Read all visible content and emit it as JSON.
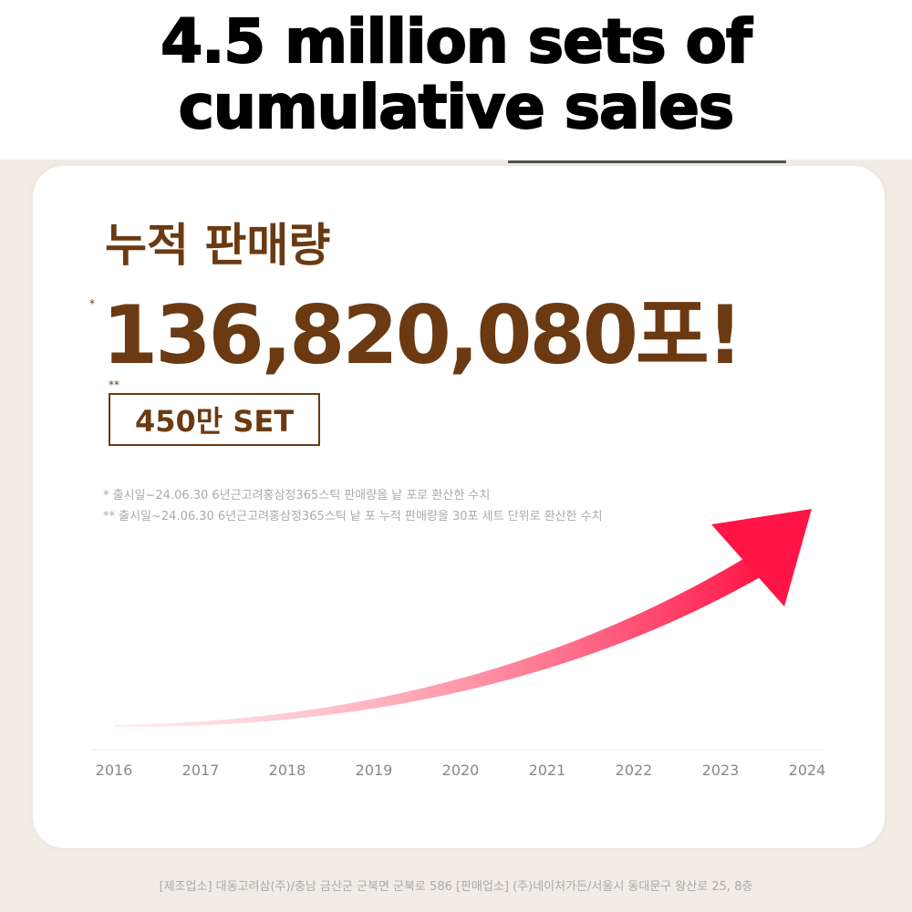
{
  "headline": [
    "4.5 million sets of",
    "cumulative sales"
  ],
  "card": {
    "label": "누적 판매량",
    "count": "136,820,080포!",
    "star1": "*",
    "star2": "**",
    "sets": "450만 SET",
    "notes": [
      "* 출시일~24.06.30 6년근고려홍삼정365스틱 판매량을 낱 포로 환산한 수치",
      "** 출시일~24.06.30 6년근고려홍삼정365스틱 낱 포 누적 판매량을 30포 세트 단위로 환산한 수치"
    ],
    "years": [
      "2016",
      "2017",
      "2018",
      "2019",
      "2020",
      "2021",
      "2022",
      "2023",
      "2024"
    ],
    "arrow_colors": {
      "start": "#fbc4c4",
      "end": "#ff1446"
    }
  },
  "footer": "[제조업소] 대동고려삼(주)/충남 금산군 군북면 군북로 586   [판매업소] (주)네이처가든/서울시 동대문구 왕산로 25, 8층"
}
